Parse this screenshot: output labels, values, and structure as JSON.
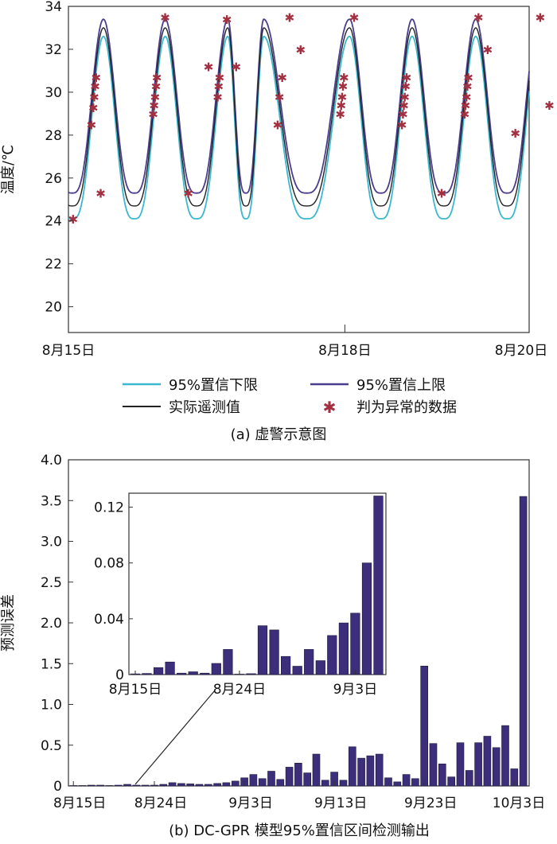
{
  "chart_data": [
    {
      "type": "line",
      "caption": "(a) 虚警示意图",
      "ylabel": "温度/℃",
      "ylim": [
        18.8,
        34
      ],
      "yticks": [
        20,
        22,
        24,
        26,
        28,
        30,
        32,
        34
      ],
      "x_range_days": [
        15,
        20
      ],
      "x_ticks": [
        {
          "day": 15,
          "label": "8月15日"
        },
        {
          "day": 18,
          "label": "8月18日"
        },
        {
          "day": 20,
          "label": "8月20日"
        }
      ],
      "series": [
        {
          "name": "95%置信下限",
          "color": "#3ab8d0"
        },
        {
          "name": "95%置信上限",
          "color": "#4b3c8e"
        },
        {
          "name": "实际遥测值",
          "color": "#222222"
        },
        {
          "name": "判为异常的数据",
          "color": "#a33040"
        }
      ],
      "daily_cycle": {
        "min": 24.1,
        "max": 33.4,
        "peak_days": [
          15.38,
          16.05,
          16.73,
          17.12,
          18.05,
          18.73,
          19.42,
          20.1
        ]
      },
      "anomalies_day_temp": [
        [
          15.05,
          24.1
        ],
        [
          15.25,
          28.5
        ],
        [
          15.27,
          29.3
        ],
        [
          15.28,
          29.8
        ],
        [
          15.29,
          30.3
        ],
        [
          15.3,
          30.7
        ],
        [
          15.35,
          25.3
        ],
        [
          15.92,
          29.0
        ],
        [
          15.93,
          29.4
        ],
        [
          15.94,
          29.8
        ],
        [
          15.95,
          30.3
        ],
        [
          15.96,
          30.7
        ],
        [
          16.05,
          33.5
        ],
        [
          16.3,
          25.3
        ],
        [
          16.52,
          31.2
        ],
        [
          16.62,
          29.8
        ],
        [
          16.63,
          30.3
        ],
        [
          16.64,
          30.7
        ],
        [
          16.72,
          33.4
        ],
        [
          16.82,
          31.2
        ],
        [
          17.27,
          28.5
        ],
        [
          17.29,
          29.8
        ],
        [
          17.32,
          30.7
        ],
        [
          17.4,
          33.5
        ],
        [
          17.52,
          32.0
        ],
        [
          17.95,
          29.0
        ],
        [
          17.96,
          29.4
        ],
        [
          17.97,
          29.8
        ],
        [
          17.98,
          30.3
        ],
        [
          17.99,
          30.7
        ],
        [
          18.1,
          33.5
        ],
        [
          18.62,
          28.5
        ],
        [
          18.63,
          29.0
        ],
        [
          18.64,
          29.4
        ],
        [
          18.65,
          29.8
        ],
        [
          18.66,
          30.3
        ],
        [
          18.67,
          30.7
        ],
        [
          19.05,
          25.3
        ],
        [
          19.3,
          29.0
        ],
        [
          19.31,
          29.4
        ],
        [
          19.32,
          29.8
        ],
        [
          19.33,
          30.3
        ],
        [
          19.34,
          30.7
        ],
        [
          19.45,
          33.5
        ],
        [
          19.55,
          32.0
        ],
        [
          19.85,
          28.1
        ],
        [
          20.12,
          33.5
        ],
        [
          20.22,
          29.4
        ]
      ]
    },
    {
      "type": "bar",
      "caption": "(b) DC-GPR 模型95%置信区间检测输出",
      "ylabel": "预测误差",
      "ylim": [
        0,
        4.0
      ],
      "yticks": [
        "0",
        "0.5",
        "1.0",
        "1.5",
        "2.0",
        "2.5",
        "3.0",
        "3.5",
        "4.0"
      ],
      "x_tick_labels": [
        "8月15日",
        "8月24日",
        "9月3日",
        "9月13日",
        "9月23日",
        "10月3日"
      ],
      "x_tick_index": [
        0,
        9,
        19,
        29,
        39,
        49
      ],
      "values": [
        0.005,
        0.005,
        0.01,
        0.01,
        0.005,
        0.01,
        0.02,
        0.01,
        0.01,
        0.01,
        0.02,
        0.04,
        0.03,
        0.025,
        0.02,
        0.02,
        0.03,
        0.04,
        0.06,
        0.1,
        0.14,
        0.09,
        0.18,
        0.08,
        0.23,
        0.28,
        0.16,
        0.39,
        0.07,
        0.17,
        0.07,
        0.48,
        0.34,
        0.37,
        0.39,
        0.1,
        0.05,
        0.14,
        0.09,
        1.47,
        0.52,
        0.27,
        0.11,
        0.53,
        0.19,
        0.53,
        0.61,
        0.47,
        0.74,
        0.21,
        3.55
      ],
      "inset": {
        "ylim": [
          0,
          0.13
        ],
        "yticks": [
          "0",
          "0.04",
          "0.08",
          "0.12"
        ],
        "x_tick_labels": [
          "8月15日",
          "8月24日",
          "9月3日"
        ],
        "x_tick_index": [
          0,
          9,
          19
        ],
        "values": [
          0.0005,
          0.0008,
          0.005,
          0.009,
          0.001,
          0.002,
          0.001,
          0.008,
          0.018,
          0.0003,
          0.0006,
          0.035,
          0.032,
          0.013,
          0.006,
          0.018,
          0.01,
          0.028,
          0.037,
          0.044,
          0.08,
          0.128
        ]
      }
    }
  ]
}
